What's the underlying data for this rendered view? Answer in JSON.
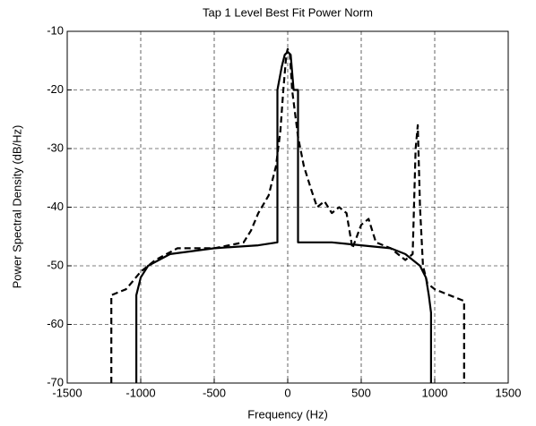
{
  "chart_data": {
    "type": "line",
    "title": "Tap 1 Level Best Fit Power Norm",
    "xlabel": "Frequency (Hz)",
    "ylabel": "Power Spectral Density (dB/Hz)",
    "xlim": [
      -1500,
      1500
    ],
    "xticks": [
      -1500,
      -1000,
      -500,
      0,
      500,
      1000,
      1500
    ],
    "ylim": [
      -70,
      -10
    ],
    "yticks": [
      -70,
      -60,
      -50,
      -40,
      -30,
      -20,
      -10
    ],
    "grid": true,
    "series": [
      {
        "color": "#000000",
        "style": "dashed",
        "x": [
          -1200,
          -1200,
          -1100,
          -1000,
          -900,
          -750,
          -500,
          -300,
          -250,
          -200,
          -130,
          -80,
          -50,
          -30,
          -10,
          0,
          15,
          30,
          70,
          110,
          160,
          200,
          250,
          300,
          350,
          400,
          440,
          500,
          550,
          600,
          700,
          800,
          850,
          870,
          885,
          900,
          920,
          950,
          1000,
          1100,
          1200,
          1200
        ],
        "values": [
          -70,
          -55,
          -54,
          -51,
          -49,
          -47,
          -47,
          -46,
          -44,
          -41,
          -38,
          -33,
          -27,
          -20,
          -14,
          -13,
          -14,
          -20,
          -28,
          -33,
          -37,
          -40,
          -39,
          -41,
          -40,
          -41,
          -47,
          -43,
          -42,
          -46,
          -47,
          -49,
          -48,
          -30,
          -26,
          -40,
          -50,
          -53,
          -54,
          -55,
          -56,
          -70
        ]
      },
      {
        "color": "#000000",
        "style": "solid",
        "x": [
          -1030,
          -1030,
          -1000,
          -950,
          -800,
          -500,
          -200,
          -70,
          -70,
          -40,
          -20,
          0,
          20,
          40,
          70,
          70,
          300,
          500,
          700,
          800,
          900,
          940,
          960,
          975,
          975
        ],
        "values": [
          -70,
          -55,
          -52,
          -50,
          -48,
          -47,
          -46.5,
          -46,
          -20,
          -16,
          -14,
          -13.5,
          -14,
          -20,
          -20,
          -46,
          -46,
          -46.5,
          -47,
          -48,
          -50,
          -52,
          -55,
          -58,
          -70
        ]
      }
    ]
  }
}
